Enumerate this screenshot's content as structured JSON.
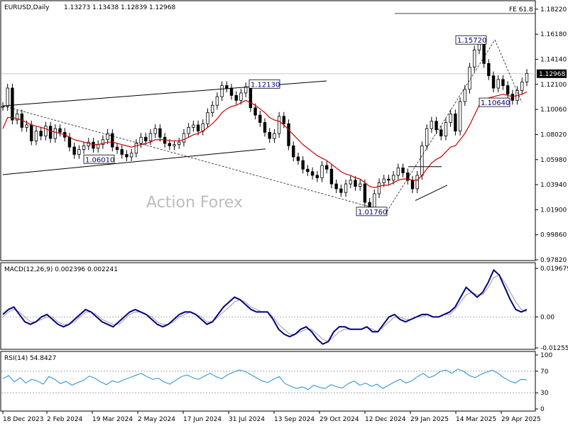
{
  "chart_data": [
    {
      "type": "candlestick",
      "symbol": "EURUSD",
      "timeframe": "Daily",
      "ohlc": {
        "open": 1.13273,
        "high": 1.13438,
        "low": 1.12839,
        "close": 1.12968
      },
      "current_price_label": "1.12968",
      "fe_label": "FE 61.8",
      "watermark": "Action Forex",
      "ylim": [
        0.9782,
        1.1862
      ],
      "y_ticks": [
        "1.18220",
        "1.16180",
        "1.14140",
        "1.12100",
        "1.10060",
        "1.08020",
        "1.05980",
        "1.03940",
        "1.01900",
        "0.99860",
        "0.97820"
      ],
      "x_ticks": [
        "18 Dec 2023",
        "2 Feb 2024",
        "19 Mar 2024",
        "2 May 2024",
        "17 Jun 2024",
        "31 Jul 2024",
        "13 Sep 2024",
        "29 Oct 2024",
        "12 Dec 2024",
        "29 Jan 2025",
        "14 Mar 2025",
        "29 Apr 2025"
      ],
      "annotations": [
        {
          "label": "1.06010",
          "value": 1.0601
        },
        {
          "label": "1.12130",
          "value": 1.1213
        },
        {
          "label": "1.01760",
          "value": 1.0176
        },
        {
          "label": "1.15720",
          "value": 1.1572
        },
        {
          "label": "1.10640",
          "value": 1.1064
        }
      ],
      "series": [
        {
          "name": "",
          "role": "price",
          "color": "#000000",
          "values": [
            1.103,
            1.118,
            1.092,
            1.097,
            1.086,
            1.088,
            1.075,
            1.083,
            1.079,
            1.087,
            1.077,
            1.085,
            1.082,
            1.078,
            1.07,
            1.064,
            1.068,
            1.071,
            1.074,
            1.069,
            1.072,
            1.076,
            1.081,
            1.07,
            1.068,
            1.064,
            1.062,
            1.065,
            1.073,
            1.078,
            1.075,
            1.081,
            1.085,
            1.078,
            1.073,
            1.071,
            1.072,
            1.074,
            1.081,
            1.086,
            1.088,
            1.083,
            1.089,
            1.098,
            1.104,
            1.111,
            1.12,
            1.118,
            1.112,
            1.108,
            1.114,
            1.119,
            1.102,
            1.096,
            1.09,
            1.082,
            1.077,
            1.081,
            1.095,
            1.089,
            1.071,
            1.062,
            1.059,
            1.052,
            1.05,
            1.047,
            1.045,
            1.055,
            1.052,
            1.04,
            1.036,
            1.033,
            1.04,
            1.043,
            1.038,
            1.04,
            1.025,
            1.018,
            1.032,
            1.041,
            1.044,
            1.043,
            1.047,
            1.053,
            1.049,
            1.043,
            1.036,
            1.047,
            1.071,
            1.085,
            1.091,
            1.084,
            1.079,
            1.09,
            1.097,
            1.083,
            1.107,
            1.117,
            1.135,
            1.149,
            1.157,
            1.138,
            1.128,
            1.118,
            1.125,
            1.12,
            1.113,
            1.108,
            1.116,
            1.123,
            1.13
          ]
        },
        {
          "name": "",
          "role": "moving-average",
          "color": "#cc0000",
          "values": [
            1.085,
            1.094,
            1.094,
            1.093,
            1.092,
            1.09,
            1.088,
            1.087,
            1.086,
            1.085,
            1.083,
            1.082,
            1.081,
            1.08,
            1.078,
            1.076,
            1.075,
            1.074,
            1.073,
            1.072,
            1.072,
            1.073,
            1.074,
            1.074,
            1.073,
            1.072,
            1.071,
            1.07,
            1.071,
            1.072,
            1.073,
            1.074,
            1.076,
            1.076,
            1.076,
            1.075,
            1.075,
            1.075,
            1.076,
            1.078,
            1.08,
            1.081,
            1.083,
            1.086,
            1.089,
            1.093,
            1.098,
            1.101,
            1.103,
            1.104,
            1.106,
            1.108,
            1.106,
            1.104,
            1.101,
            1.098,
            1.094,
            1.092,
            1.091,
            1.088,
            1.084,
            1.08,
            1.076,
            1.072,
            1.069,
            1.066,
            1.063,
            1.061,
            1.059,
            1.056,
            1.053,
            1.05,
            1.048,
            1.047,
            1.045,
            1.044,
            1.041,
            1.038,
            1.037,
            1.038,
            1.039,
            1.039,
            1.041,
            1.043,
            1.044,
            1.044,
            1.043,
            1.043,
            1.047,
            1.052,
            1.057,
            1.06,
            1.062,
            1.066,
            1.07,
            1.071,
            1.076,
            1.081,
            1.088,
            1.096,
            1.104,
            1.108,
            1.11,
            1.111,
            1.112,
            1.113,
            1.112,
            1.111,
            1.112,
            1.113,
            1.115
          ]
        }
      ]
    },
    {
      "type": "line",
      "title": "MACD(12,26,9) 0.002396 0.002241",
      "ylim": [
        -0.01255,
        0.019679
      ],
      "y_ticks": [
        "0.019679",
        "0.00",
        "-0.012552"
      ],
      "series": [
        {
          "name": "MACD",
          "color": "#000080",
          "values": [
            0.001,
            0.003,
            0.004,
            0.001,
            -0.002,
            -0.003,
            -0.002,
            0.0,
            0.001,
            -0.001,
            -0.003,
            -0.004,
            -0.003,
            -0.001,
            0.001,
            0.003,
            0.002,
            0.0,
            -0.002,
            -0.003,
            -0.004,
            -0.002,
            0.0,
            0.002,
            0.003,
            0.002,
            0.001,
            -0.001,
            -0.003,
            -0.004,
            -0.003,
            -0.001,
            0.001,
            0.002,
            0.002,
            0.001,
            -0.001,
            -0.003,
            -0.002,
            0.001,
            0.004,
            0.006,
            0.008,
            0.007,
            0.005,
            0.003,
            0.002,
            0.002,
            0.002,
            -0.001,
            -0.005,
            -0.007,
            -0.008,
            -0.007,
            -0.005,
            -0.004,
            -0.006,
            -0.009,
            -0.011,
            -0.01,
            -0.006,
            -0.004,
            -0.004,
            -0.005,
            -0.005,
            -0.005,
            -0.004,
            -0.006,
            -0.006,
            -0.003,
            0.0,
            0.001,
            -0.001,
            -0.002,
            -0.001,
            0.0,
            0.001,
            0.001,
            0.0,
            0.0,
            0.001,
            0.002,
            0.004,
            0.008,
            0.012,
            0.01,
            0.008,
            0.01,
            0.014,
            0.019,
            0.017,
            0.012,
            0.007,
            0.003,
            0.002,
            0.003
          ]
        },
        {
          "name": "Signal",
          "color": "#999999",
          "values": [
            0.0,
            0.002,
            0.003,
            0.002,
            0.0,
            -0.002,
            -0.002,
            -0.001,
            0.0,
            0.0,
            -0.002,
            -0.003,
            -0.003,
            -0.002,
            0.0,
            0.002,
            0.002,
            0.001,
            -0.001,
            -0.002,
            -0.003,
            -0.003,
            -0.001,
            0.001,
            0.002,
            0.002,
            0.001,
            0.0,
            -0.002,
            -0.003,
            -0.003,
            -0.002,
            0.0,
            0.001,
            0.002,
            0.001,
            0.0,
            -0.002,
            -0.002,
            0.0,
            0.002,
            0.004,
            0.006,
            0.007,
            0.006,
            0.004,
            0.003,
            0.002,
            0.002,
            0.0,
            -0.003,
            -0.005,
            -0.007,
            -0.007,
            -0.006,
            -0.005,
            -0.005,
            -0.007,
            -0.009,
            -0.01,
            -0.008,
            -0.006,
            -0.005,
            -0.005,
            -0.005,
            -0.005,
            -0.004,
            -0.005,
            -0.006,
            -0.004,
            -0.002,
            0.0,
            0.0,
            -0.001,
            -0.001,
            0.0,
            0.0,
            0.001,
            0.0,
            0.0,
            0.001,
            0.001,
            0.003,
            0.006,
            0.009,
            0.01,
            0.009,
            0.009,
            0.012,
            0.016,
            0.017,
            0.014,
            0.01,
            0.006,
            0.003,
            0.002
          ]
        }
      ]
    },
    {
      "type": "line",
      "title": "RSI(14) 54.8427",
      "ylim": [
        0,
        100
      ],
      "y_ticks": [
        "100",
        "70",
        "30",
        "0"
      ],
      "levels": [
        70,
        30
      ],
      "series": [
        {
          "name": "RSI",
          "color": "#1e8fd6",
          "values": [
            56,
            62,
            50,
            58,
            48,
            55,
            52,
            46,
            60,
            55,
            47,
            51,
            44,
            49,
            53,
            61,
            57,
            50,
            45,
            52,
            49,
            54,
            58,
            62,
            66,
            60,
            55,
            57,
            50,
            46,
            53,
            60,
            63,
            58,
            55,
            61,
            66,
            60,
            56,
            63,
            68,
            72,
            70,
            64,
            58,
            52,
            49,
            55,
            60,
            47,
            42,
            38,
            41,
            36,
            44,
            40,
            38,
            45,
            41,
            39,
            47,
            52,
            44,
            48,
            42,
            46,
            38,
            44,
            50,
            55,
            48,
            52,
            60,
            66,
            58,
            62,
            70,
            72,
            66,
            74,
            70,
            62,
            58,
            64,
            68,
            72,
            66,
            58,
            52,
            48,
            55,
            54
          ]
        }
      ]
    }
  ]
}
